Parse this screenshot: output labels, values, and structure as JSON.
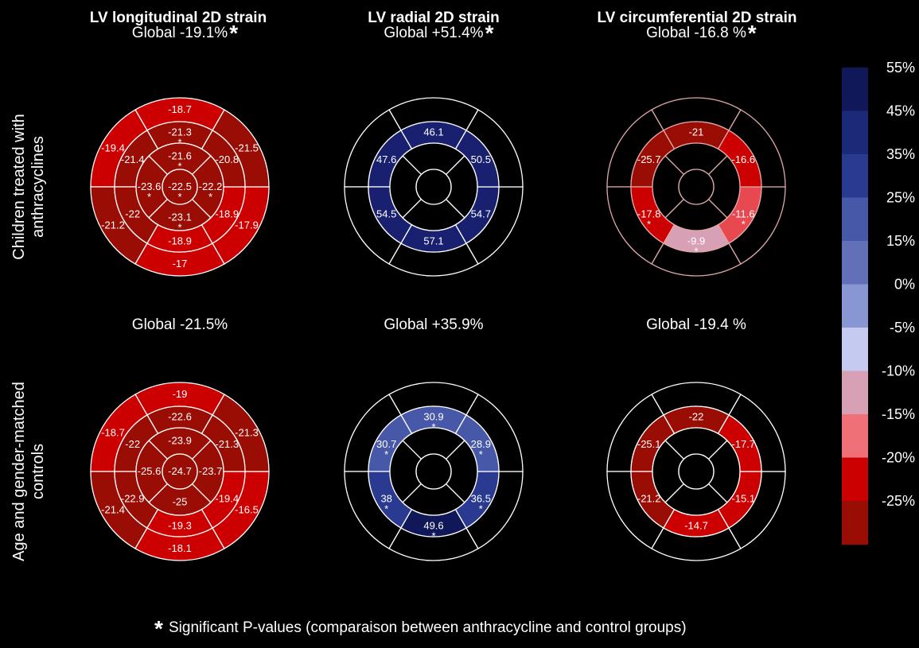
{
  "chart_data": {
    "type": "heatmap",
    "chart_type_detail": "17-segment left ventricle bull's-eye strain maps",
    "colors": {
      "background": "#000000",
      "outline_white": "#ffffff",
      "outline_pink": "#e0a8a8",
      "text": "#ffffff",
      "empty_fill": "#000000"
    },
    "segment_order_note_text": "basal(6), mid(6), apical(4), apex(1); fills per segment",
    "column_titles": [
      "LV longitudinal 2D strain",
      "LV radial 2D strain",
      "LV circumferential 2D strain"
    ],
    "row_labels": [
      [
        "Children treated with",
        "anthracyclines"
      ],
      [
        "Age and gender-matched",
        "controls"
      ]
    ],
    "globals": [
      [
        "Global -19.1%",
        "Global +51.4%",
        "Global -16.8 %"
      ],
      [
        "Global -21.5%",
        "Global +35.9%",
        "Global -19.4 %"
      ]
    ],
    "global_stars": [
      [
        true,
        true,
        true
      ],
      [
        false,
        false,
        false
      ]
    ],
    "plots": [
      {
        "row": 0,
        "col": 0,
        "outline": "white",
        "segments": [
          {
            "ring": "basal",
            "idx": 0,
            "value": "-18.7",
            "star": false,
            "color": "#cc0000"
          },
          {
            "ring": "basal",
            "idx": 1,
            "value": "-19.4",
            "star": false,
            "color": "#cc0000"
          },
          {
            "ring": "basal",
            "idx": 2,
            "value": "-21.2",
            "star": false,
            "color": "#990d05"
          },
          {
            "ring": "basal",
            "idx": 3,
            "value": "-17",
            "star": false,
            "color": "#cc0000"
          },
          {
            "ring": "basal",
            "idx": 4,
            "value": "-17.9",
            "star": false,
            "color": "#cc0000"
          },
          {
            "ring": "basal",
            "idx": 5,
            "value": "-21.5",
            "star": false,
            "color": "#990d05"
          },
          {
            "ring": "mid",
            "idx": 0,
            "value": "-21.3",
            "star": true,
            "color": "#990d05"
          },
          {
            "ring": "mid",
            "idx": 1,
            "value": "-21.4",
            "star": false,
            "color": "#990d05"
          },
          {
            "ring": "mid",
            "idx": 2,
            "value": "-22",
            "star": false,
            "color": "#990d05"
          },
          {
            "ring": "mid",
            "idx": 3,
            "value": "-18.9",
            "star": false,
            "color": "#cc0000"
          },
          {
            "ring": "mid",
            "idx": 4,
            "value": "-18.9",
            "star": false,
            "color": "#cc0000"
          },
          {
            "ring": "mid",
            "idx": 5,
            "value": "-20.8",
            "star": false,
            "color": "#990d05"
          },
          {
            "ring": "apical",
            "idx": 0,
            "value": "-21.6",
            "star": true,
            "color": "#990d05"
          },
          {
            "ring": "apical",
            "idx": 1,
            "value": "-23.6",
            "star": true,
            "color": "#990d05"
          },
          {
            "ring": "apical",
            "idx": 2,
            "value": "-23.1",
            "star": true,
            "color": "#990d05"
          },
          {
            "ring": "apical",
            "idx": 3,
            "value": "-22.2",
            "star": true,
            "color": "#990d05"
          },
          {
            "ring": "apex",
            "idx": 0,
            "value": "-22.5",
            "star": true,
            "color": "#990d05"
          }
        ]
      },
      {
        "row": 0,
        "col": 1,
        "outline": "white",
        "segments": [
          {
            "ring": "basal",
            "idx": 0,
            "value": "",
            "star": false,
            "color": "#000000"
          },
          {
            "ring": "basal",
            "idx": 1,
            "value": "",
            "star": false,
            "color": "#000000"
          },
          {
            "ring": "basal",
            "idx": 2,
            "value": "",
            "star": false,
            "color": "#000000"
          },
          {
            "ring": "basal",
            "idx": 3,
            "value": "",
            "star": false,
            "color": "#000000"
          },
          {
            "ring": "basal",
            "idx": 4,
            "value": "",
            "star": false,
            "color": "#000000"
          },
          {
            "ring": "basal",
            "idx": 5,
            "value": "",
            "star": false,
            "color": "#000000"
          },
          {
            "ring": "mid",
            "idx": 0,
            "value": "46.1",
            "star": false,
            "color": "#1a2070"
          },
          {
            "ring": "mid",
            "idx": 1,
            "value": "47.6",
            "star": false,
            "color": "#1a2070"
          },
          {
            "ring": "mid",
            "idx": 2,
            "value": "54.5",
            "star": false,
            "color": "#1a2070"
          },
          {
            "ring": "mid",
            "idx": 3,
            "value": "57.1",
            "star": false,
            "color": "#1a2070"
          },
          {
            "ring": "mid",
            "idx": 4,
            "value": "54.7",
            "star": false,
            "color": "#1a2070"
          },
          {
            "ring": "mid",
            "idx": 5,
            "value": "50.5",
            "star": false,
            "color": "#1a2070"
          },
          {
            "ring": "apical",
            "idx": 0,
            "value": "",
            "star": false,
            "color": "#000000"
          },
          {
            "ring": "apical",
            "idx": 1,
            "value": "",
            "star": false,
            "color": "#000000"
          },
          {
            "ring": "apical",
            "idx": 2,
            "value": "",
            "star": false,
            "color": "#000000"
          },
          {
            "ring": "apical",
            "idx": 3,
            "value": "",
            "star": false,
            "color": "#000000"
          },
          {
            "ring": "apex",
            "idx": 0,
            "value": "",
            "star": false,
            "color": "#000000"
          }
        ]
      },
      {
        "row": 0,
        "col": 2,
        "outline": "pink",
        "segments": [
          {
            "ring": "basal",
            "idx": 0,
            "value": "",
            "star": false,
            "color": "#000000"
          },
          {
            "ring": "basal",
            "idx": 1,
            "value": "",
            "star": false,
            "color": "#000000"
          },
          {
            "ring": "basal",
            "idx": 2,
            "value": "",
            "star": false,
            "color": "#000000"
          },
          {
            "ring": "basal",
            "idx": 3,
            "value": "",
            "star": false,
            "color": "#000000"
          },
          {
            "ring": "basal",
            "idx": 4,
            "value": "",
            "star": false,
            "color": "#000000"
          },
          {
            "ring": "basal",
            "idx": 5,
            "value": "",
            "star": false,
            "color": "#000000"
          },
          {
            "ring": "mid",
            "idx": 0,
            "value": "-21",
            "star": false,
            "color": "#990d05"
          },
          {
            "ring": "mid",
            "idx": 1,
            "value": "-25.7",
            "star": false,
            "color": "#990d05"
          },
          {
            "ring": "mid",
            "idx": 2,
            "value": "-17.8",
            "star": true,
            "color": "#cc0000"
          },
          {
            "ring": "mid",
            "idx": 3,
            "value": "-9.9",
            "star": true,
            "color": "#d8a0b4"
          },
          {
            "ring": "mid",
            "idx": 4,
            "value": "-11.6",
            "star": true,
            "color": "#e84850"
          },
          {
            "ring": "mid",
            "idx": 5,
            "value": "-16.6",
            "star": false,
            "color": "#cc0000"
          },
          {
            "ring": "apical",
            "idx": 0,
            "value": "",
            "star": false,
            "color": "#000000"
          },
          {
            "ring": "apical",
            "idx": 1,
            "value": "",
            "star": false,
            "color": "#000000"
          },
          {
            "ring": "apical",
            "idx": 2,
            "value": "",
            "star": false,
            "color": "#000000"
          },
          {
            "ring": "apical",
            "idx": 3,
            "value": "",
            "star": false,
            "color": "#000000"
          },
          {
            "ring": "apex",
            "idx": 0,
            "value": "",
            "star": false,
            "color": "#000000"
          }
        ]
      },
      {
        "row": 1,
        "col": 0,
        "outline": "white",
        "segments": [
          {
            "ring": "basal",
            "idx": 0,
            "value": "-19",
            "star": false,
            "color": "#cc0000"
          },
          {
            "ring": "basal",
            "idx": 1,
            "value": "-18.7",
            "star": false,
            "color": "#cc0000"
          },
          {
            "ring": "basal",
            "idx": 2,
            "value": "-21.4",
            "star": false,
            "color": "#990d05"
          },
          {
            "ring": "basal",
            "idx": 3,
            "value": "-18.1",
            "star": false,
            "color": "#cc0000"
          },
          {
            "ring": "basal",
            "idx": 4,
            "value": "-16.5",
            "star": false,
            "color": "#cc0000"
          },
          {
            "ring": "basal",
            "idx": 5,
            "value": "-21.3",
            "star": false,
            "color": "#990d05"
          },
          {
            "ring": "mid",
            "idx": 0,
            "value": "-22.6",
            "star": false,
            "color": "#990d05"
          },
          {
            "ring": "mid",
            "idx": 1,
            "value": "-22",
            "star": false,
            "color": "#990d05"
          },
          {
            "ring": "mid",
            "idx": 2,
            "value": "-22.9",
            "star": false,
            "color": "#990d05"
          },
          {
            "ring": "mid",
            "idx": 3,
            "value": "-19.3",
            "star": false,
            "color": "#cc0000"
          },
          {
            "ring": "mid",
            "idx": 4,
            "value": "-19.4",
            "star": false,
            "color": "#cc0000"
          },
          {
            "ring": "mid",
            "idx": 5,
            "value": "-21.3",
            "star": false,
            "color": "#990d05"
          },
          {
            "ring": "apical",
            "idx": 0,
            "value": "-23.9",
            "star": false,
            "color": "#990d05"
          },
          {
            "ring": "apical",
            "idx": 1,
            "value": "-25.6",
            "star": false,
            "color": "#990d05"
          },
          {
            "ring": "apical",
            "idx": 2,
            "value": "-25",
            "star": false,
            "color": "#990d05"
          },
          {
            "ring": "apical",
            "idx": 3,
            "value": "-23.7",
            "star": false,
            "color": "#990d05"
          },
          {
            "ring": "apex",
            "idx": 0,
            "value": "-24.7",
            "star": false,
            "color": "#990d05"
          }
        ]
      },
      {
        "row": 1,
        "col": 1,
        "outline": "white",
        "segments": [
          {
            "ring": "basal",
            "idx": 0,
            "value": "",
            "star": false,
            "color": "#000000"
          },
          {
            "ring": "basal",
            "idx": 1,
            "value": "",
            "star": false,
            "color": "#000000"
          },
          {
            "ring": "basal",
            "idx": 2,
            "value": "",
            "star": false,
            "color": "#000000"
          },
          {
            "ring": "basal",
            "idx": 3,
            "value": "",
            "star": false,
            "color": "#000000"
          },
          {
            "ring": "basal",
            "idx": 4,
            "value": "",
            "star": false,
            "color": "#000000"
          },
          {
            "ring": "basal",
            "idx": 5,
            "value": "",
            "star": false,
            "color": "#000000"
          },
          {
            "ring": "mid",
            "idx": 0,
            "value": "30.9",
            "star": true,
            "color": "#4858a8"
          },
          {
            "ring": "mid",
            "idx": 1,
            "value": "30.7",
            "star": true,
            "color": "#4858a8"
          },
          {
            "ring": "mid",
            "idx": 2,
            "value": "38",
            "star": true,
            "color": "#2a3a90"
          },
          {
            "ring": "mid",
            "idx": 3,
            "value": "49.6",
            "star": true,
            "color": "#10185a"
          },
          {
            "ring": "mid",
            "idx": 4,
            "value": "36.5",
            "star": true,
            "color": "#2a3a90"
          },
          {
            "ring": "mid",
            "idx": 5,
            "value": "28.9",
            "star": true,
            "color": "#4858a8"
          },
          {
            "ring": "apical",
            "idx": 0,
            "value": "",
            "star": false,
            "color": "#000000"
          },
          {
            "ring": "apical",
            "idx": 1,
            "value": "",
            "star": false,
            "color": "#000000"
          },
          {
            "ring": "apical",
            "idx": 2,
            "value": "",
            "star": false,
            "color": "#000000"
          },
          {
            "ring": "apical",
            "idx": 3,
            "value": "",
            "star": false,
            "color": "#000000"
          },
          {
            "ring": "apex",
            "idx": 0,
            "value": "",
            "star": false,
            "color": "#000000"
          }
        ]
      },
      {
        "row": 1,
        "col": 2,
        "outline": "white",
        "segments": [
          {
            "ring": "basal",
            "idx": 0,
            "value": "",
            "star": false,
            "color": "#000000"
          },
          {
            "ring": "basal",
            "idx": 1,
            "value": "",
            "star": false,
            "color": "#000000"
          },
          {
            "ring": "basal",
            "idx": 2,
            "value": "",
            "star": false,
            "color": "#000000"
          },
          {
            "ring": "basal",
            "idx": 3,
            "value": "",
            "star": false,
            "color": "#000000"
          },
          {
            "ring": "basal",
            "idx": 4,
            "value": "",
            "star": false,
            "color": "#000000"
          },
          {
            "ring": "basal",
            "idx": 5,
            "value": "",
            "star": false,
            "color": "#000000"
          },
          {
            "ring": "mid",
            "idx": 0,
            "value": "-22",
            "star": false,
            "color": "#990d05"
          },
          {
            "ring": "mid",
            "idx": 1,
            "value": "-25.1",
            "star": false,
            "color": "#990d05"
          },
          {
            "ring": "mid",
            "idx": 2,
            "value": "-21.2",
            "star": false,
            "color": "#990d05"
          },
          {
            "ring": "mid",
            "idx": 3,
            "value": "-14.7",
            "star": false,
            "color": "#cc0000"
          },
          {
            "ring": "mid",
            "idx": 4,
            "value": "-15.1",
            "star": false,
            "color": "#cc0000"
          },
          {
            "ring": "mid",
            "idx": 5,
            "value": "-17.7",
            "star": false,
            "color": "#cc0000"
          },
          {
            "ring": "apical",
            "idx": 0,
            "value": "",
            "star": false,
            "color": "#000000"
          },
          {
            "ring": "apical",
            "idx": 1,
            "value": "",
            "star": false,
            "color": "#000000"
          },
          {
            "ring": "apical",
            "idx": 2,
            "value": "",
            "star": false,
            "color": "#000000"
          },
          {
            "ring": "apical",
            "idx": 3,
            "value": "",
            "star": false,
            "color": "#000000"
          },
          {
            "ring": "apex",
            "idx": 0,
            "value": "",
            "star": false,
            "color": "#000000"
          }
        ]
      }
    ],
    "colorbar": {
      "labels": [
        "55%",
        "45%",
        "35%",
        "25%",
        "15%",
        "0%",
        "-5%",
        "-10%",
        "-15%",
        "-20%",
        "-25%"
      ],
      "colors": [
        "#10185a",
        "#1a2a78",
        "#2a3a90",
        "#4858a8",
        "#6270b8",
        "#8896d4",
        "#c4caf0",
        "#d8a0b4",
        "#f07078",
        "#cc0000",
        "#990d05"
      ]
    },
    "footnote": "Significant P-values (comparaison between anthracycline and control groups)"
  }
}
